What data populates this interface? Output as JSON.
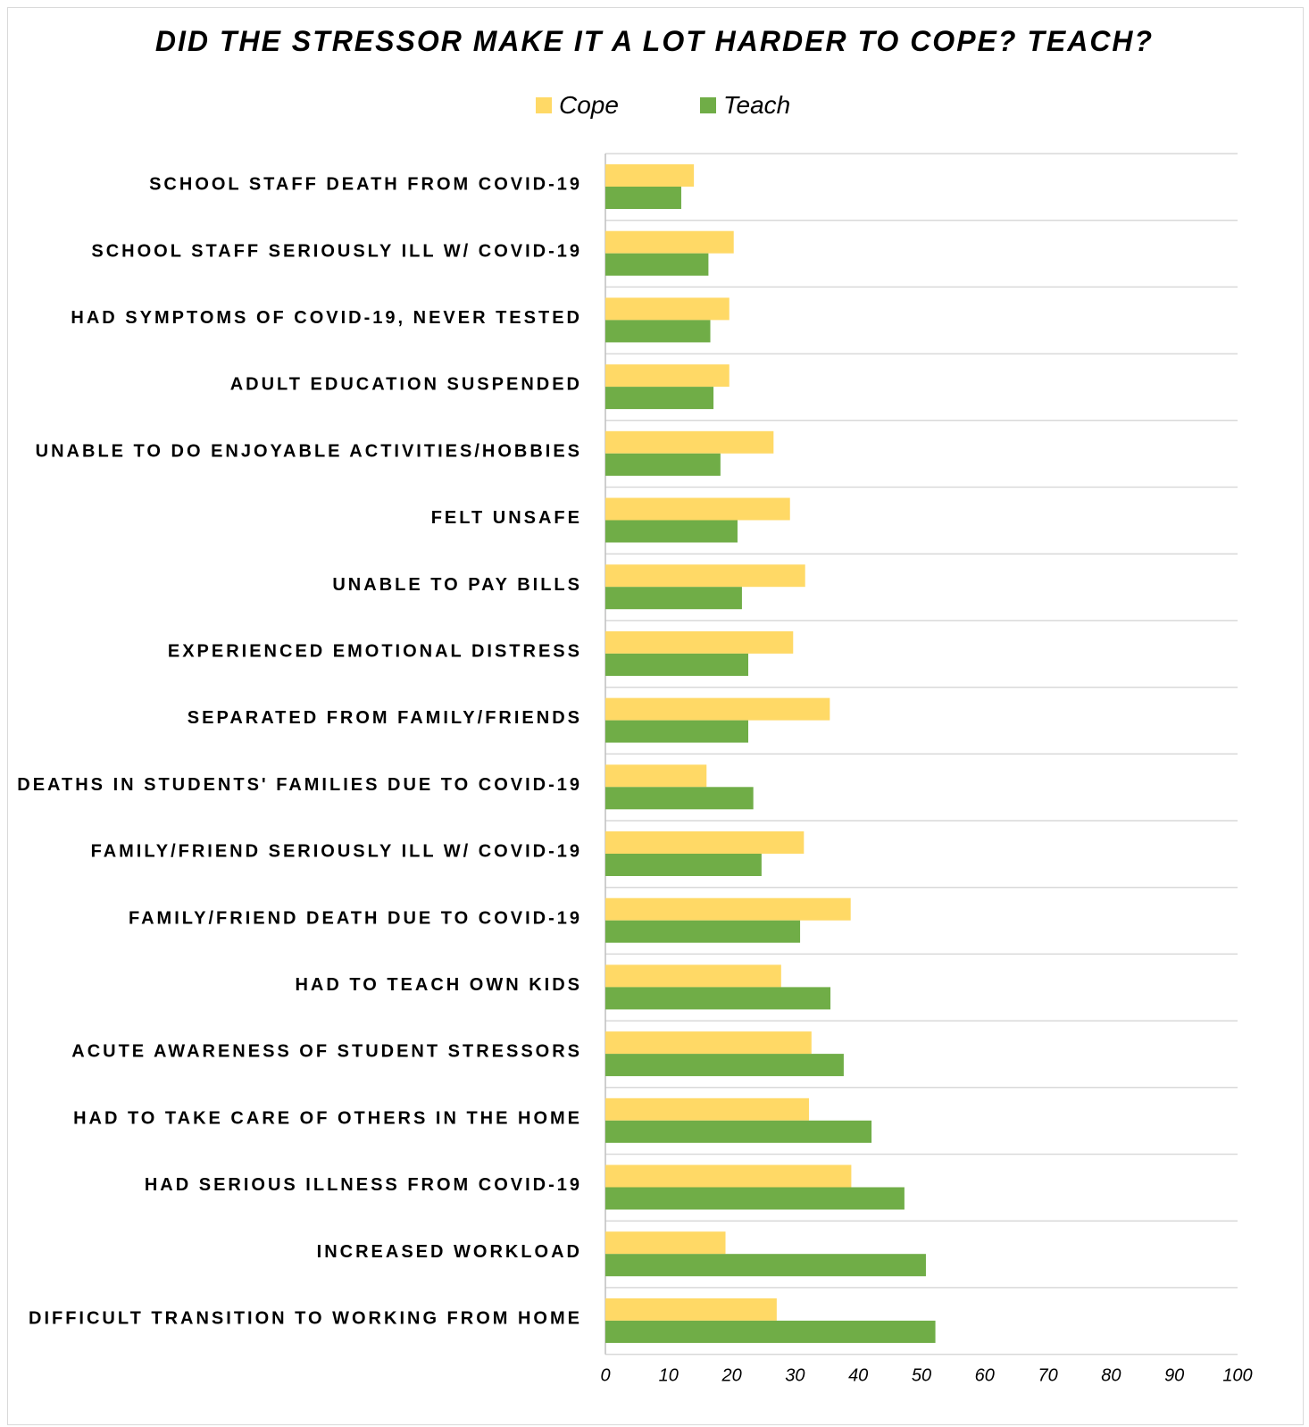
{
  "chart_data": {
    "type": "bar",
    "orientation": "horizontal",
    "title": "DID THE STRESSOR MAKE IT A LOT HARDER TO COPE? TEACH?",
    "xlabel": "",
    "ylabel": "",
    "xlim": [
      0,
      100
    ],
    "x_ticks": [
      "0",
      "10",
      "20",
      "30",
      "40",
      "50",
      "60",
      "70",
      "80",
      "90",
      "100"
    ],
    "grid": "horizontal lines between categories",
    "legend_position": "top",
    "categories": [
      "SCHOOL STAFF DEATH FROM COVID-19",
      "SCHOOL STAFF SERIOUSLY ILL W/ COVID-19",
      "HAD SYMPTOMS OF COVID-19, NEVER TESTED",
      "ADULT EDUCATION SUSPENDED",
      "UNABLE TO DO ENJOYABLE ACTIVITIES/HOBBIES",
      "FELT UNSAFE",
      "UNABLE TO PAY BILLS",
      "EXPERIENCED EMOTIONAL DISTRESS",
      "SEPARATED FROM FAMILY/FRIENDS",
      "DEATHS IN STUDENTS' FAMILIES DUE TO COVID-19",
      "FAMILY/FRIEND SERIOUSLY ILL W/ COVID-19",
      "FAMILY/FRIEND DEATH DUE TO COVID-19",
      "HAD TO TEACH OWN KIDS",
      "ACUTE AWARENESS OF STUDENT STRESSORS",
      "HAD TO TAKE CARE OF OTHERS IN THE HOME",
      "HAD SERIOUS ILLNESS FROM COVID-19",
      "INCREASED WORKLOAD",
      "DIFFICULT TRANSITION TO WORKING FROM HOME"
    ],
    "series": [
      {
        "name": "Cope",
        "color": "#ffd966",
        "values": [
          14,
          20.3,
          19.6,
          19.6,
          26.6,
          29.2,
          31.6,
          29.7,
          35.5,
          16,
          31.4,
          38.8,
          27.8,
          32.6,
          32.2,
          38.9,
          19,
          27.1
        ]
      },
      {
        "name": "Teach",
        "color": "#70ad47",
        "values": [
          12,
          16.3,
          16.6,
          17.1,
          18.2,
          20.9,
          21.6,
          22.6,
          22.6,
          23.4,
          24.7,
          30.8,
          35.6,
          37.7,
          42.1,
          47.3,
          50.7,
          52.2
        ]
      }
    ]
  }
}
